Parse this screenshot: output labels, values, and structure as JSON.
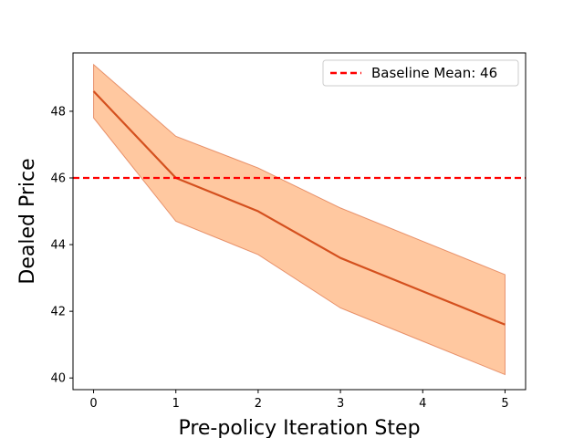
{
  "chart_data": {
    "type": "line",
    "xlabel": "Pre-policy Iteration Step",
    "ylabel": "Dealed Price",
    "xlim": [
      -0.25,
      5.25
    ],
    "ylim": [
      39.65,
      49.75
    ],
    "x_ticks": [
      0,
      1,
      2,
      3,
      4,
      5
    ],
    "y_ticks": [
      40,
      42,
      44,
      46,
      48
    ],
    "grid": false,
    "legend_position": "top-right",
    "series": [
      {
        "x": [
          0,
          1,
          2,
          3,
          4,
          5
        ],
        "values": [
          48.6,
          46.0,
          45.0,
          43.6,
          42.6,
          41.6
        ],
        "lower": [
          47.8,
          44.7,
          43.7,
          42.1,
          41.1,
          40.1
        ],
        "upper": [
          49.4,
          47.25,
          46.3,
          45.1,
          44.1,
          43.1
        ],
        "color": "#d4501e",
        "fill_color": "#ffc8a0"
      }
    ],
    "baseline": {
      "name": "Baseline Mean: 46",
      "value": 46,
      "color": "#ff0000",
      "style": "dashed"
    }
  }
}
